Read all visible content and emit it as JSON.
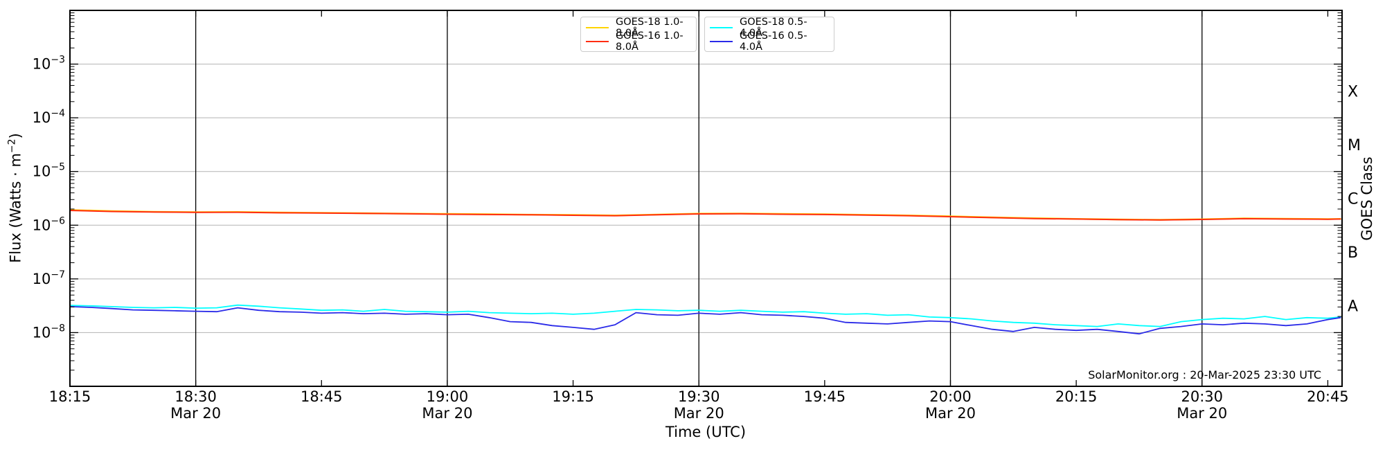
{
  "page": {
    "background": "#ffffff",
    "plot_border_color": "#000000",
    "grid_color": "#b3b3b3",
    "major_timeline_color": "#000000"
  },
  "watermark": "SolarMonitor.org : 20-Mar-2025 23:30 UTC",
  "ylabel_parts": {
    "pre": "Flux (Watts · m",
    "sup": "−2",
    "post": ")"
  },
  "legend": {
    "boxes": [
      [
        {
          "label": "GOES-18 1.0-8.0Å",
          "color": "#ffd400"
        },
        {
          "label": "GOES-16 1.0-8.0Å",
          "color": "#ff2d11"
        }
      ],
      [
        {
          "label": "GOES-18 0.5-4.0Å",
          "color": "#00ffff"
        },
        {
          "label": "GOES-16 0.5-4.0Å",
          "color": "#2a2ae8"
        }
      ]
    ]
  },
  "chart_data": {
    "type": "line",
    "title": "",
    "xlabel": "Time (UTC)",
    "ylabel": "Flux (Watts · m⁻²)",
    "ylabel_right": "GOES Class",
    "x_axis": {
      "tick_labels": [
        "18:15",
        "18:30",
        "18:45",
        "19:00",
        "19:15",
        "19:30",
        "19:45",
        "20:00",
        "20:15",
        "20:30",
        "20:45"
      ],
      "tick_minutes": [
        0,
        15,
        30,
        45,
        60,
        75,
        90,
        105,
        120,
        135,
        150
      ],
      "date_sub_label": "Mar 20",
      "date_sub_minutes": [
        15,
        45,
        75,
        105,
        135
      ],
      "major_line_minutes": [
        15,
        45,
        75,
        105,
        135
      ],
      "range_minutes": [
        0,
        151.7
      ],
      "start_time": "18:15",
      "end_time": "20:45"
    },
    "y_axis": {
      "scale": "log",
      "range_exp": [
        -9,
        -2
      ],
      "tick_exponents": [
        -3,
        -4,
        -5,
        -6,
        -7,
        -8
      ],
      "grid": true
    },
    "goes_classes": [
      {
        "label": "X",
        "center_exp": -3.5
      },
      {
        "label": "M",
        "center_exp": -4.5
      },
      {
        "label": "C",
        "center_exp": -5.5
      },
      {
        "label": "B",
        "center_exp": -6.5
      },
      {
        "label": "A",
        "center_exp": -7.5
      }
    ],
    "series": [
      {
        "name": "GOES-18 1.0-8.0Å",
        "color": "#ffd400",
        "width": 2.4,
        "x_minutes": [
          0,
          5,
          10,
          15,
          20,
          25,
          30,
          35,
          40,
          45,
          50,
          55,
          60,
          65,
          70,
          75,
          80,
          85,
          90,
          95,
          100,
          105,
          110,
          115,
          120,
          125,
          130,
          135,
          140,
          145,
          150,
          151.5
        ],
        "values": [
          1.92e-06,
          1.83e-06,
          1.78e-06,
          1.75e-06,
          1.76e-06,
          1.72e-06,
          1.7e-06,
          1.67e-06,
          1.64e-06,
          1.62e-06,
          1.6e-06,
          1.57e-06,
          1.55e-06,
          1.52e-06,
          1.58e-06,
          1.64e-06,
          1.65e-06,
          1.62e-06,
          1.6e-06,
          1.56e-06,
          1.52e-06,
          1.46e-06,
          1.4e-06,
          1.35e-06,
          1.31e-06,
          1.28e-06,
          1.26e-06,
          1.29e-06,
          1.34e-06,
          1.32e-06,
          1.3e-06,
          1.31e-06
        ]
      },
      {
        "name": "GOES-16 1.0-8.0Å",
        "color": "#ff2d11",
        "width": 2,
        "x_minutes": [
          0,
          5,
          10,
          15,
          20,
          25,
          30,
          35,
          40,
          45,
          50,
          55,
          60,
          65,
          70,
          75,
          80,
          85,
          90,
          95,
          100,
          105,
          110,
          115,
          120,
          125,
          130,
          135,
          140,
          145,
          150,
          151.5
        ],
        "values": [
          1.88e-06,
          1.8e-06,
          1.76e-06,
          1.73e-06,
          1.74e-06,
          1.7e-06,
          1.68e-06,
          1.66e-06,
          1.63e-06,
          1.6e-06,
          1.58e-06,
          1.56e-06,
          1.53e-06,
          1.5e-06,
          1.56e-06,
          1.62e-06,
          1.63e-06,
          1.6e-06,
          1.58e-06,
          1.54e-06,
          1.5e-06,
          1.44e-06,
          1.38e-06,
          1.33e-06,
          1.3e-06,
          1.27e-06,
          1.25e-06,
          1.28e-06,
          1.32e-06,
          1.3e-06,
          1.29e-06,
          1.3e-06
        ]
      },
      {
        "name": "GOES-18 0.5-4.0Å",
        "color": "#00ffff",
        "width": 1.8,
        "x_minutes": [
          0,
          2.5,
          5,
          7.5,
          10,
          12.5,
          15,
          17.5,
          20,
          22.5,
          25,
          27.5,
          30,
          32.5,
          35,
          37.5,
          40,
          42.5,
          45,
          47.5,
          50,
          52.5,
          55,
          57.5,
          60,
          62.5,
          65,
          67.5,
          70,
          72.5,
          75,
          77.5,
          80,
          82.5,
          85,
          87.5,
          90,
          92.5,
          95,
          97.5,
          100,
          102.5,
          105,
          107.5,
          110,
          112.5,
          115,
          117.5,
          120,
          122.5,
          125,
          127.5,
          130,
          132.5,
          135,
          137.5,
          140,
          142.5,
          145,
          147.5,
          150,
          151.5
        ],
        "values": [
          3.2e-08,
          3.15e-08,
          3.05e-08,
          2.95e-08,
          2.9e-08,
          2.95e-08,
          2.85e-08,
          2.9e-08,
          3.25e-08,
          3.1e-08,
          2.9e-08,
          2.75e-08,
          2.6e-08,
          2.65e-08,
          2.5e-08,
          2.7e-08,
          2.5e-08,
          2.45e-08,
          2.4e-08,
          2.5e-08,
          2.35e-08,
          2.3e-08,
          2.25e-08,
          2.3e-08,
          2.2e-08,
          2.3e-08,
          2.5e-08,
          2.7e-08,
          2.65e-08,
          2.55e-08,
          2.6e-08,
          2.5e-08,
          2.6e-08,
          2.5e-08,
          2.4e-08,
          2.45e-08,
          2.3e-08,
          2.2e-08,
          2.25e-08,
          2.1e-08,
          2.15e-08,
          1.95e-08,
          1.9e-08,
          1.8e-08,
          1.65e-08,
          1.55e-08,
          1.5e-08,
          1.4e-08,
          1.35e-08,
          1.3e-08,
          1.45e-08,
          1.35e-08,
          1.3e-08,
          1.6e-08,
          1.75e-08,
          1.85e-08,
          1.8e-08,
          2e-08,
          1.75e-08,
          1.9e-08,
          1.85e-08,
          1.95e-08
        ]
      },
      {
        "name": "GOES-16 0.5-4.0Å",
        "color": "#2a2ae8",
        "width": 1.8,
        "x_minutes": [
          0,
          2.5,
          5,
          7.5,
          10,
          12.5,
          15,
          17.5,
          20,
          22.5,
          25,
          27.5,
          30,
          32.5,
          35,
          37.5,
          40,
          42.5,
          45,
          47.5,
          50,
          52.5,
          55,
          57.5,
          60,
          62.5,
          65,
          67.5,
          70,
          72.5,
          75,
          77.5,
          80,
          82.5,
          85,
          87.5,
          90,
          92.5,
          95,
          97.5,
          100,
          102.5,
          105,
          107.5,
          110,
          112.5,
          115,
          117.5,
          120,
          122.5,
          125,
          127.5,
          130,
          132.5,
          135,
          137.5,
          140,
          142.5,
          145,
          147.5,
          150,
          151.5
        ],
        "values": [
          3.05e-08,
          2.95e-08,
          2.8e-08,
          2.65e-08,
          2.6e-08,
          2.55e-08,
          2.5e-08,
          2.45e-08,
          2.9e-08,
          2.6e-08,
          2.45e-08,
          2.4e-08,
          2.3e-08,
          2.35e-08,
          2.25e-08,
          2.3e-08,
          2.2e-08,
          2.25e-08,
          2.15e-08,
          2.2e-08,
          1.9e-08,
          1.6e-08,
          1.55e-08,
          1.35e-08,
          1.25e-08,
          1.15e-08,
          1.4e-08,
          2.35e-08,
          2.15e-08,
          2.1e-08,
          2.3e-08,
          2.2e-08,
          2.35e-08,
          2.15e-08,
          2.1e-08,
          2e-08,
          1.85e-08,
          1.55e-08,
          1.5e-08,
          1.45e-08,
          1.55e-08,
          1.65e-08,
          1.6e-08,
          1.35e-08,
          1.15e-08,
          1.05e-08,
          1.25e-08,
          1.15e-08,
          1.1e-08,
          1.15e-08,
          1.05e-08,
          9.5e-09,
          1.2e-08,
          1.3e-08,
          1.45e-08,
          1.4e-08,
          1.5e-08,
          1.45e-08,
          1.35e-08,
          1.45e-08,
          1.75e-08,
          1.9e-08
        ]
      }
    ]
  }
}
